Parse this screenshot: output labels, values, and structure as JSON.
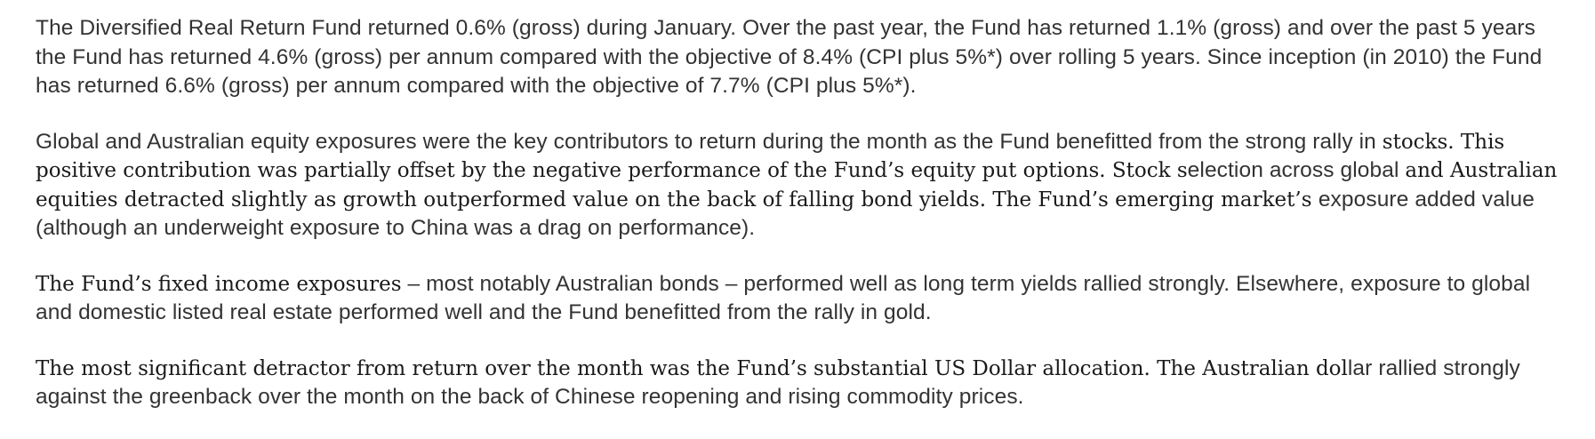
{
  "paragraphs": [
    {
      "segments": [
        {
          "style": "sans",
          "text": "The Diversified Real Return Fund returned 0.6% (gross) during January. Over the past year, the Fund has returned 1.1% (gross) and over the past 5 years the Fund has returned 4.6% (gross) per annum compared with the objective of 8.4% (CPI plus 5%*) over rolling 5 years. Since inception (in 2010) the Fund has returned 6.6% (gross) per annum compared with the objective of 7.7% (CPI plus 5%*)."
        }
      ]
    },
    {
      "segments": [
        {
          "style": "sans",
          "text": "Global and Australian equity exposures were the key contributors to return during the month as the Fund benefitted from the strong rally in "
        },
        {
          "style": "serif",
          "text": "stocks. This positive contribution was partially offset by the negative performance of the Fund’s equity put options. Stock s"
        },
        {
          "style": "sans",
          "text": "election across global "
        },
        {
          "style": "serif",
          "text": "and Australian equities detracted slightly as growth outperformed value on the back of falling bond yields. The Fund’s emerging market’s "
        },
        {
          "style": "sans",
          "text": "exposure added value (although an underweight exposure to China was a drag on performance)."
        }
      ]
    },
    {
      "segments": [
        {
          "style": "serif",
          "text": "The Fund’s fixed income exposures"
        },
        {
          "style": "sans",
          "text": " – most notably Australian bonds – performed well as long term yields rallied strongly. Elsewhere, exposure to global and domestic listed real estate performed well and the Fund benefitted from the rally in gold."
        }
      ]
    },
    {
      "segments": [
        {
          "style": "serif",
          "text": "The most significant detractor from return over the month was the Fund’s substantial US Dollar allocation. The Australian dol"
        },
        {
          "style": "sans",
          "text": "lar rallied strongly against the greenback over the month on the back of Chinese reopening and rising commodity prices."
        }
      ]
    }
  ]
}
